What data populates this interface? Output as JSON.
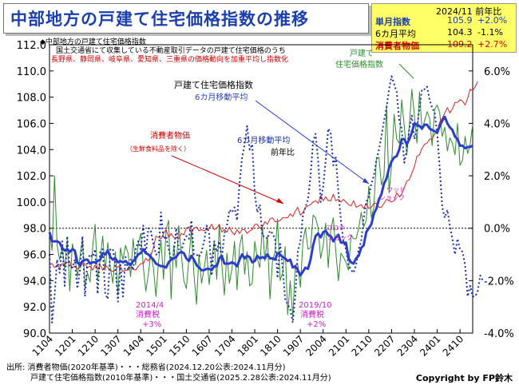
{
  "header": {
    "title": "中部地方の戸建て住宅価格指数の推移"
  },
  "info_box": {
    "date_label": "2024/11 前年比",
    "rows": [
      {
        "label": "単月指数",
        "value": "105.9",
        "change": "+2.0%",
        "color": "#1a3fae"
      },
      {
        "label": "6カ月平均",
        "value": "104.3",
        "change": "-1.1%",
        "color": "#000000"
      },
      {
        "label": "消費者物価",
        "value": "109.2",
        "change": "+2.7%",
        "color": "#e00000"
      }
    ]
  },
  "notes": {
    "line1": "◆中部地方の戸建て住宅価格指数",
    "line2": "国土交通省にて収集している不動産取引データの戸建て住宅価格のうち",
    "line3": "長野県、静岡県、岐阜県、愛知県、三重県の価格動向を加重平均し指数化"
  },
  "annotations": {
    "cpi_label": "消費者物価",
    "cpi_sub": "（生鮮食料品を除く）",
    "index_label": "戸建て住宅価格指数",
    "ma_label": "6カ月移動平均",
    "yoy_ma_label": "6カ月移動平均",
    "yoy_label": "前年比",
    "detached_label_1": "戸建て",
    "detached_label_2": "住宅価格指数",
    "woodshock_1": "ウッド",
    "woodshock_2": "ショック",
    "corona_1": "コロナ",
    "corona_2": "ショック",
    "tax2014_1": "2014/4",
    "tax2014_2": "消費税",
    "tax2014_3": "+3%",
    "tax2019_1": "2019/10",
    "tax2019_2": "消費税",
    "tax2019_3": "+2%"
  },
  "source": {
    "line1": "出所: 消費者物価(2020年基準)・・・総務省(2024.12.20公表:2024.11月分)",
    "line2": "戸建て住宅価格指数(2010年基準)・・・国土交通省(2025.2.28公表:2024.11月分)"
  },
  "copyright": "Copyright by FP鈴木",
  "colors": {
    "index": "#2e8b2e",
    "ma": "#2a3ec9",
    "cpi": "#e02020",
    "yoy": "#1a2fa8",
    "accent_title": "#1a3fae",
    "annotation_pink": "#cc22cc"
  },
  "chart_data": {
    "type": "line",
    "start": "2011-04",
    "end": "2024-11",
    "x_tick_labels": [
      "1104",
      "1201",
      "1210",
      "1307",
      "1404",
      "1501",
      "1510",
      "1607",
      "1704",
      "1801",
      "1810",
      "1907",
      "2004",
      "2101",
      "2110",
      "2207",
      "2304",
      "2401",
      "2410"
    ],
    "y_left": {
      "range": [
        90.0,
        112.0
      ],
      "ticks": [
        "90.0",
        "92.0",
        "94.0",
        "96.0",
        "98.0",
        "100.0",
        "102.0",
        "104.0",
        "106.0",
        "108.0",
        "110.0",
        "112.0"
      ]
    },
    "y_right": {
      "range": [
        -4.0,
        7.0
      ],
      "ticks": [
        "-4.0%",
        "-2.0%",
        "0.0%",
        "2.0%",
        "4.0%",
        "6.0%"
      ]
    },
    "grid": false,
    "series": [
      {
        "name": "戸建て住宅価格指数",
        "axis": "left",
        "style": "thin-solid",
        "values": [
          97.8,
          96.3,
          102.0,
          96.7,
          95.6,
          96.5,
          94.9,
          97.1,
          93.2,
          96.8,
          96.0,
          94.3,
          95.8,
          97.2,
          93.5,
          94.6,
          93.9,
          96.5,
          98.3,
          94.1,
          95.6,
          97.4,
          94.8,
          96.9,
          95.0,
          93.8,
          96.2,
          92.9,
          96.5,
          95.6,
          96.7,
          96.1,
          94.3,
          97.2,
          95.2,
          96.8,
          97.6,
          95.1,
          93.2,
          94.5,
          96.1,
          95.0,
          92.8,
          95.4,
          97.1,
          94.1,
          97.9,
          98.6,
          92.6,
          96.7,
          95.0,
          98.2,
          96.1,
          94.0,
          93.4,
          95.7,
          97.8,
          94.5,
          92.2,
          96.0,
          93.8,
          94.9,
          96.3,
          93.7,
          95.5,
          97.0,
          94.1,
          98.2,
          95.2,
          92.9,
          96.1,
          93.8,
          94.9,
          97.0,
          93.3,
          96.6,
          97.5,
          94.5,
          96.2,
          93.6,
          93.8,
          97.0,
          95.7,
          95.0,
          98.2,
          95.5,
          97.4,
          92.6,
          95.5,
          96.2,
          98.7,
          94.0,
          94.6,
          96.6,
          91.4,
          94.0,
          91.2,
          95.2,
          95.2,
          93.5,
          97.0,
          98.0,
          96.4,
          96.5,
          99.0,
          98.8,
          98.0,
          95.7,
          96.7,
          98.4,
          95.0,
          97.9,
          98.8,
          96.2,
          94.0,
          96.1,
          95.8,
          95.4,
          94.8,
          97.5,
          97.2,
          97.2,
          98.0,
          99.2,
          98.1,
          98.6,
          101.2,
          98.8,
          99.6,
          103.3,
          103.4,
          101.3,
          102.0,
          107.4,
          100.7,
          102.8,
          106.7,
          104.8,
          104.5,
          107.8,
          105.8,
          103.6,
          105.9,
          108.6,
          106.6,
          104.5,
          108.4,
          105.5,
          106.2,
          106.9,
          106.4,
          104.3,
          107.1,
          107.4,
          106.8,
          105.0,
          105.7,
          103.9,
          104.9,
          104.5,
          103.6,
          106.0,
          102.8,
          103.2,
          105.0,
          103.7,
          104.4,
          105.9
        ]
      },
      {
        "name": "6カ月移動平均",
        "axis": "left",
        "style": "thick-solid",
        "values": [
          97.7,
          97.0,
          97.0,
          97.0,
          96.9,
          96.5,
          96.3,
          96.4,
          96.2,
          96.4,
          96.3,
          95.4,
          95.2,
          95.5,
          95.6,
          95.6,
          95.3,
          95.4,
          95.4,
          95.5,
          95.6,
          96.1,
          96.0,
          96.3,
          95.8,
          95.6,
          95.7,
          95.4,
          95.5,
          95.4,
          95.5,
          95.3,
          95.2,
          95.5,
          95.7,
          96.0,
          96.1,
          96.4,
          96.1,
          96.0,
          95.8,
          95.6,
          95.3,
          95.2,
          95.1,
          95.1,
          95.0,
          95.4,
          95.6,
          95.7,
          95.8,
          96.1,
          96.2,
          96.1,
          95.7,
          95.5,
          95.9,
          95.6,
          95.2,
          95.0,
          94.8,
          94.8,
          94.9,
          94.9,
          94.8,
          95.1,
          95.1,
          95.7,
          95.9,
          95.3,
          95.3,
          95.3,
          95.4,
          95.3,
          95.1,
          95.6,
          96.0,
          95.7,
          95.9,
          95.8,
          95.4,
          95.5,
          95.9,
          95.7,
          95.8,
          95.7,
          96.0,
          95.7,
          95.7,
          95.6,
          96.1,
          96.0,
          95.8,
          95.7,
          95.5,
          95.6,
          95.0,
          95.1,
          94.8,
          94.4,
          94.7,
          95.0,
          94.9,
          95.6,
          96.7,
          97.4,
          97.6,
          97.3,
          97.7,
          97.8,
          97.5,
          97.4,
          97.0,
          97.3,
          97.5,
          96.9,
          96.9,
          96.9,
          95.7,
          95.4,
          95.3,
          95.7,
          95.9,
          96.5,
          96.7,
          97.7,
          98.0,
          98.3,
          99.1,
          99.5,
          100.2,
          100.6,
          101.4,
          101.8,
          102.6,
          103.1,
          103.4,
          103.5,
          104.0,
          104.8,
          104.8,
          104.4,
          104.8,
          105.3,
          106.0,
          105.9,
          105.8,
          105.6,
          105.9,
          105.9,
          105.6,
          105.5,
          105.4,
          105.3,
          105.8,
          106.2,
          106.5,
          106.0,
          105.7,
          105.5,
          105.0,
          104.8,
          104.3,
          104.3,
          104.1,
          104.2,
          104.2,
          104.3
        ]
      },
      {
        "name": "消費者物価",
        "axis": "left",
        "style": "thin-solid",
        "values": [
          95.2,
          95.3,
          95.0,
          95.2,
          95.0,
          95.3,
          95.2,
          95.4,
          95.4,
          95.0,
          95.1,
          94.9,
          95.0,
          95.3,
          95.3,
          95.0,
          95.1,
          94.8,
          95.2,
          94.9,
          95.2,
          94.8,
          95.2,
          95.0,
          94.8,
          94.7,
          94.8,
          95.1,
          95.0,
          94.7,
          94.8,
          94.8,
          95.0,
          94.9,
          94.8,
          95.1,
          95.3,
          95.3,
          95.7,
          95.5,
          95.9,
          96.5,
          97.4,
          97.3,
          97.2,
          97.6,
          97.9,
          97.3,
          97.6,
          97.3,
          97.3,
          97.2,
          97.6,
          97.5,
          98.0,
          98.1,
          97.6,
          98.0,
          98.1,
          97.8,
          97.9,
          97.8,
          97.9,
          98.0,
          98.3,
          97.9,
          98.0,
          98.3,
          97.7,
          97.9,
          97.7,
          98.1,
          97.7,
          97.5,
          97.9,
          97.6,
          97.9,
          97.9,
          97.6,
          97.8,
          97.9,
          98.3,
          98.3,
          98.0,
          98.1,
          98.5,
          98.3,
          98.7,
          98.8,
          98.5,
          98.5,
          98.6,
          98.8,
          98.8,
          98.8,
          99.1,
          98.9,
          99.3,
          99.6,
          99.0,
          99.2,
          99.6,
          99.7,
          99.8,
          100.0,
          100.1,
          99.9,
          100.5,
          100.1,
          100.4,
          100.1,
          100.1,
          100.6,
          100.1,
          100.2,
          100.0,
          100.2,
          100.0,
          99.8,
          99.7,
          100.1,
          99.6,
          99.7,
          99.8,
          99.5,
          99.9,
          99.5,
          99.6,
          99.9,
          99.9,
          99.6,
          99.6,
          99.9,
          100.2,
          100.1,
          100.0,
          100.1,
          100.7,
          100.4,
          100.6,
          101.1,
          101.6,
          101.7,
          102.2,
          102.7,
          103.5,
          103.6,
          104.1,
          104.4,
          104.5,
          104.8,
          104.8,
          105.2,
          105.4,
          106.1,
          106.4,
          106.8,
          107.2,
          106.8,
          107.1,
          107.6,
          107.6,
          107.8,
          107.7,
          107.4,
          107.9,
          108.6,
          108.5,
          108.8,
          109.2
        ]
      },
      {
        "name": "前年比",
        "axis": "right",
        "style": "dotted",
        "values": [
          -1.0,
          -3.6,
          -2.6,
          -1.2,
          -1.7,
          -0.5,
          -2.2,
          -0.3,
          -1.5,
          -1.5,
          -1.2,
          -2.3,
          -1.6,
          -0.3,
          -2.6,
          -1.2,
          -1.0,
          -1.1,
          -0.8,
          -2.5,
          -0.9,
          -0.8,
          -2.5,
          -2.7,
          -0.8,
          -0.8,
          -1.4,
          -2.8,
          -1.4,
          -2.6,
          -1.1,
          -1.6,
          -1.2,
          -1.6,
          -0.8,
          -0.5,
          -0.8,
          0.1,
          -1.0,
          -0.0,
          -0.1,
          -0.6,
          -1.0,
          -1.0,
          0.6,
          -0.4,
          -0.3,
          -0.8,
          -1.2,
          -1.0,
          0.0,
          -0.8,
          -0.9,
          -0.5,
          -0.3,
          -0.4,
          0.3,
          -1.0,
          -1.0,
          -1.1,
          -0.9,
          -0.5,
          0.1,
          -0.2,
          -1.8,
          -0.5,
          -0.9,
          -0.5,
          -1.2,
          -0.2,
          0.1,
          0.7,
          0.6,
          0.8,
          0.3,
          1.7,
          2.7,
          3.2,
          3.9,
          3.0,
          3.2,
          1.3,
          0.6,
          0.9,
          -0.3,
          -0.3,
          -0.4,
          -0.1,
          -0.2,
          -0.4,
          -1.9,
          -0.6,
          -1.5,
          -2.7,
          -2.9,
          -3.1,
          -3.6,
          -2.6,
          -0.9,
          -0.5,
          0.5,
          0.8,
          1.1,
          2.0,
          3.3,
          3.6,
          2.6,
          1.0,
          1.6,
          2.6,
          3.8,
          3.6,
          2.4,
          2.7,
          1.4,
          0.3,
          -0.5,
          -0.8,
          -1.4,
          -1.6,
          -1.7,
          -1.4,
          -0.8,
          -0.5,
          0.4,
          1.0,
          1.2,
          1.7,
          2.0,
          2.6,
          3.0,
          3.5,
          4.1,
          4.6,
          5.3,
          5.8,
          5.5,
          5.2,
          4.1,
          3.8,
          2.5,
          3.0,
          3.8,
          4.3,
          3.4,
          3.8,
          4.6,
          5.3,
          5.3,
          5.4,
          4.9,
          4.6,
          4.4,
          3.6,
          2.3,
          0.8,
          0.4,
          0.7,
          0.1,
          -0.4,
          -1.0,
          -0.4,
          -0.8,
          -0.9,
          -1.4,
          -2.6,
          -2.2,
          -2.6,
          -2.6,
          -2.4,
          -1.8,
          -2.0
        ]
      }
    ]
  }
}
